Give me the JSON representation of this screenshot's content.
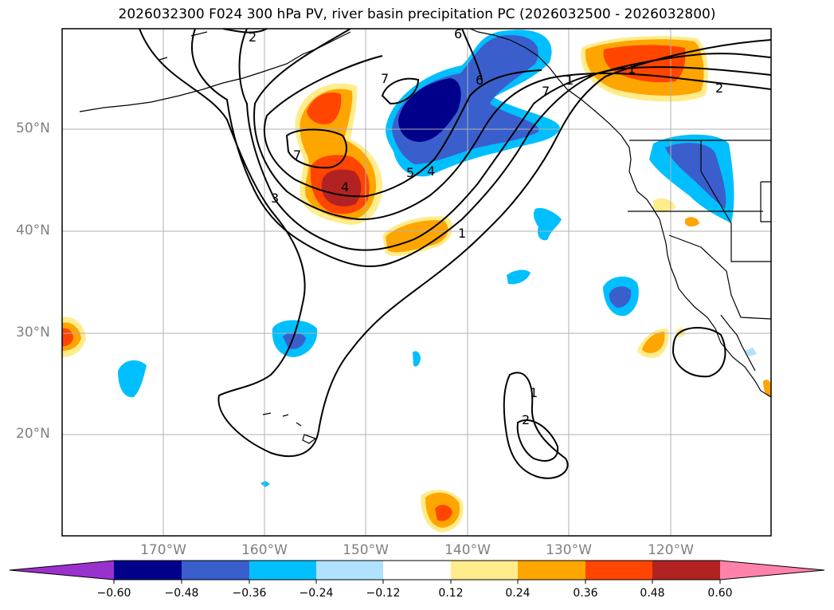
{
  "title": "2026032300 F024 300 hPa PV, river basin precipitation PC (2026032500 - 2026032800)",
  "latitude_labels": [
    "50°N",
    "40°N",
    "30°N",
    "20°N"
  ],
  "longitude_labels": [
    "170°W",
    "160°W",
    "150°W",
    "140°W",
    "130°W",
    "120°W"
  ],
  "contour_labels": [
    "6",
    "6",
    "7",
    "7",
    "7",
    "5",
    "4",
    "3",
    "2",
    "2",
    "1",
    "1",
    "2",
    "1",
    "1",
    "4"
  ],
  "colorbar": {
    "tick_labels": [
      "−0.60",
      "−0.48",
      "−0.36",
      "−0.24",
      "−0.12",
      "0.12",
      "0.24",
      "0.36",
      "0.48",
      "0.60"
    ],
    "colors": [
      "#9932cc",
      "#00008b",
      "#3a5fcd",
      "#00bfff",
      "#b0e2ff",
      "#ffffff",
      "#ffec8b",
      "#ffa500",
      "#ff4500",
      "#b22222",
      "#ff82ab"
    ]
  },
  "colors": {
    "grid": "#b0b0b0",
    "axis_label": "#808080",
    "contour": "#000000"
  }
}
